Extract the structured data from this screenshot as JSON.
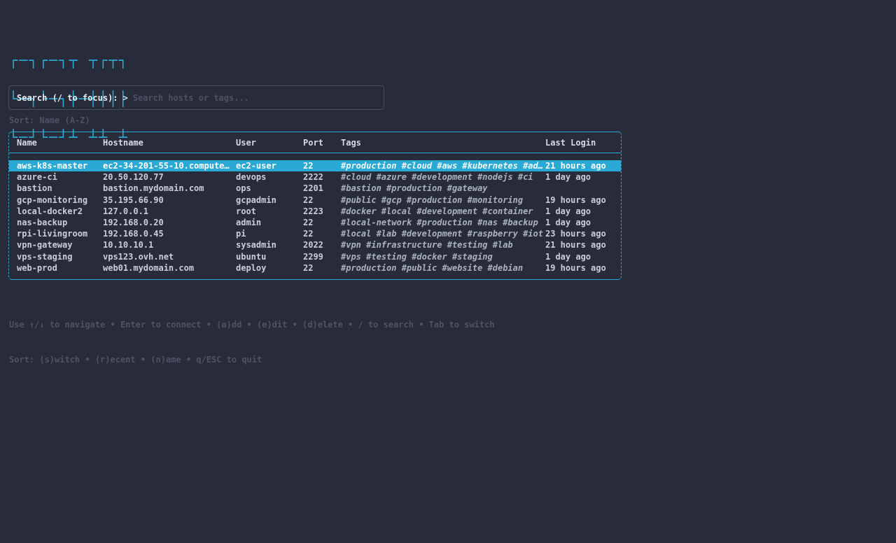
{
  "app": {
    "title": "sshm"
  },
  "colors": {
    "background": "#282c3a",
    "accent": "#2aa9d4",
    "selection_background": "#2aa9d4",
    "text": "#c9cfd9",
    "dim_text": "#4d5364"
  },
  "logo": {
    "lines": [
      "┌─┐┌─┐┬ ┬┌┬┐",
      "└─┐└─┐├─┤│││",
      "└─┘└─┘┴ ┴┴ ┴"
    ]
  },
  "search": {
    "label": "Search (/ to focus):",
    "prompt": ">",
    "value": "",
    "placeholder": "Search hosts or tags..."
  },
  "sort": {
    "status": "Sort: Name (A-Z)"
  },
  "table": {
    "columns": [
      "Name",
      "Hostname",
      "User",
      "Port",
      "Tags",
      "Last Login"
    ],
    "selected_index": 0,
    "rows": [
      {
        "name": "aws-k8s-master",
        "hostname": "ec2-34-201-55-10.compute…",
        "user": "ec2-user",
        "port": "22",
        "tags": "#production #cloud #aws #kubernetes #ad…",
        "last_login": "21 hours ago"
      },
      {
        "name": "azure-ci",
        "hostname": "20.50.120.77",
        "user": "devops",
        "port": "2222",
        "tags": "#cloud #azure #development #nodejs #ci",
        "last_login": "1 day ago"
      },
      {
        "name": "bastion",
        "hostname": "bastion.mydomain.com",
        "user": "ops",
        "port": "2201",
        "tags": "#bastion #production #gateway",
        "last_login": ""
      },
      {
        "name": "gcp-monitoring",
        "hostname": "35.195.66.90",
        "user": "gcpadmin",
        "port": "22",
        "tags": "#public #gcp #production #monitoring",
        "last_login": "19 hours ago"
      },
      {
        "name": "local-docker2",
        "hostname": "127.0.0.1",
        "user": "root",
        "port": "2223",
        "tags": "#docker #local #development #container",
        "last_login": "1 day ago"
      },
      {
        "name": "nas-backup",
        "hostname": "192.168.0.20",
        "user": "admin",
        "port": "22",
        "tags": "#local-network #production #nas #backup",
        "last_login": "1 day ago"
      },
      {
        "name": "rpi-livingroom",
        "hostname": "192.168.0.45",
        "user": "pi",
        "port": "22",
        "tags": "#local #lab #development #raspberry #iot",
        "last_login": "23 hours ago"
      },
      {
        "name": "vpn-gateway",
        "hostname": "10.10.10.1",
        "user": "sysadmin",
        "port": "2022",
        "tags": "#vpn #infrastructure #testing #lab",
        "last_login": "21 hours ago"
      },
      {
        "name": "vps-staging",
        "hostname": "vps123.ovh.net",
        "user": "ubuntu",
        "port": "2299",
        "tags": "#vps #testing #docker #staging",
        "last_login": "1 day ago"
      },
      {
        "name": "web-prod",
        "hostname": "web01.mydomain.com",
        "user": "deploy",
        "port": "22",
        "tags": "#production #public #website #debian",
        "last_login": "19 hours ago"
      }
    ]
  },
  "help": {
    "lines": [
      "Use ↑/↓ to navigate • Enter to connect • (a)dd • (e)dit • (d)elete • / to search • Tab to switch",
      "Sort: (s)witch • (r)ecent • (n)ame • q/ESC to quit"
    ]
  }
}
